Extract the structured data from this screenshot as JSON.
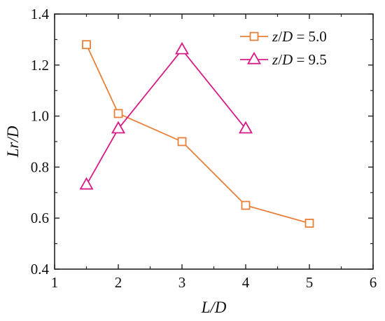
{
  "chart_data": {
    "type": "line",
    "xlabel": "L/D",
    "ylabel": "Lr/D",
    "xlim": [
      1,
      6
    ],
    "ylim": [
      0.4,
      1.4
    ],
    "xticks": [
      1,
      2,
      3,
      4,
      5,
      6
    ],
    "yticks": [
      0.4,
      0.6,
      0.8,
      1.0,
      1.2,
      1.4
    ],
    "xtick_labels": [
      "1",
      "2",
      "3",
      "4",
      "5",
      "6"
    ],
    "ytick_labels": [
      "0.4",
      "0.6",
      "0.8",
      "1.0",
      "1.2",
      "1.4"
    ],
    "grid": false,
    "legend_position": "top-right",
    "series": [
      {
        "name": "z/D = 5.0",
        "color": "#e8803a",
        "marker": "square",
        "x": [
          1.5,
          2,
          3,
          4,
          5
        ],
        "y": [
          1.28,
          1.01,
          0.9,
          0.65,
          0.58
        ]
      },
      {
        "name": "z/D = 9.5",
        "color": "#d81b87",
        "marker": "triangle",
        "x": [
          1.5,
          2,
          3,
          4
        ],
        "y": [
          0.73,
          0.95,
          1.26,
          0.95
        ]
      }
    ]
  }
}
